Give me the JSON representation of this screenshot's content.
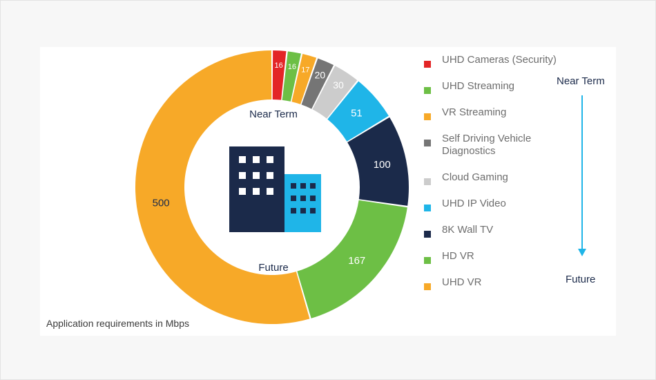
{
  "chart_data": {
    "type": "pie",
    "categories": [
      "UHD Cameras (Security)",
      "UHD Streaming",
      "VR Streaming",
      "Self Driving Vehicle Diagnostics",
      "Cloud Gaming",
      "UHD IP Video",
      "8K Wall TV",
      "HD VR",
      "UHD VR"
    ],
    "values": [
      16,
      16,
      17,
      20,
      30,
      51,
      100,
      167,
      500
    ],
    "colors": [
      "#e32526",
      "#6dbf45",
      "#f7a928",
      "#757575",
      "#cccccc",
      "#1fb5e8",
      "#1b2a4a",
      "#6dbf45",
      "#f7a928"
    ],
    "label_colors": [
      "#ffffff",
      "#ffffff",
      "#ffffff",
      "#ffffff",
      "#ffffff",
      "#ffffff",
      "#ffffff",
      "#ffffff",
      "#1b2a4a"
    ],
    "hole": "donut",
    "ring_labels": {
      "start": "Near Term",
      "end": "Future"
    },
    "footnote": "Application requirements in Mbps",
    "legend_position": "right",
    "timeline": {
      "start": "Near Term",
      "end": "Future",
      "direction": "down"
    },
    "icon": "office-buildings-icon"
  }
}
